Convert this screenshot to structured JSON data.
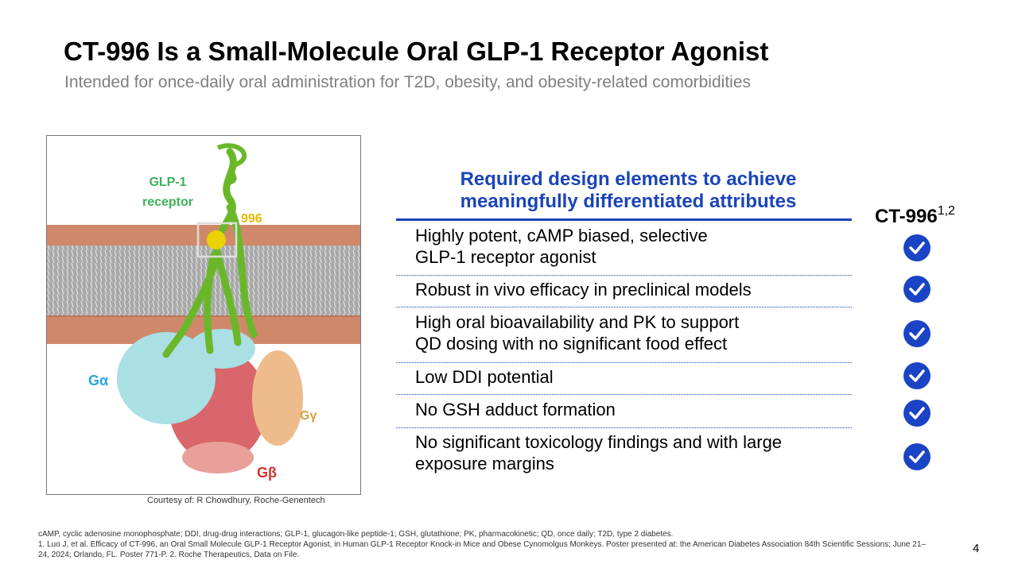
{
  "header": {
    "title": "CT-996 Is a Small-Molecule Oral GLP-1 Receptor Agonist",
    "subtitle": "Intended for once-daily oral administration for T2D, obesity, and obesity-related comorbidities"
  },
  "figure": {
    "labels": {
      "receptor": "GLP-1 receptor",
      "compound": "996",
      "galpha": "Gα",
      "ggamma": "Gγ",
      "gbeta": "Gβ"
    },
    "credit": "Courtesy of: R Chowdhury, Roche-Genentech"
  },
  "table": {
    "heading": "Required design elements to achieve meaningfully differentiated attributes",
    "column": {
      "name": "CT-996",
      "superscript": "1,2"
    },
    "rows": [
      [
        "Highly potent, cAMP biased, selective",
        "GLP-1 receptor agonist"
      ],
      [
        "Robust in vivo efficacy in preclinical models"
      ],
      [
        "High oral bioavailability and PK to support",
        "QD dosing with no significant food effect"
      ],
      [
        "Low DDI potential"
      ],
      [
        "No GSH adduct formation"
      ],
      [
        "No significant toxicology findings and with large",
        "exposure margins"
      ]
    ]
  },
  "footnotes": [
    "cAMP, cyclic adenosine monophosphate; DDI, drug-drug interactions; GLP-1, glucagon-like peptide-1; GSH, glutathione; PK, pharmacokinetic; QD, once daily; T2D, type 2 diabetes.",
    "1. Luo J, et al. Efficacy of CT-996, an Oral Small Molecule GLP-1 Receptor Agonist, in Human GLP-1 Receptor Knock-in Mice and Obese Cynomolgus Monkeys. Poster presented at: the American Diabetes Association 84th Scientific Sessions; June 21–24, 2024; Orlando, FL. Poster 771-P. 2. Roche Therapeutics, Data on File."
  ],
  "page_number": "4"
}
